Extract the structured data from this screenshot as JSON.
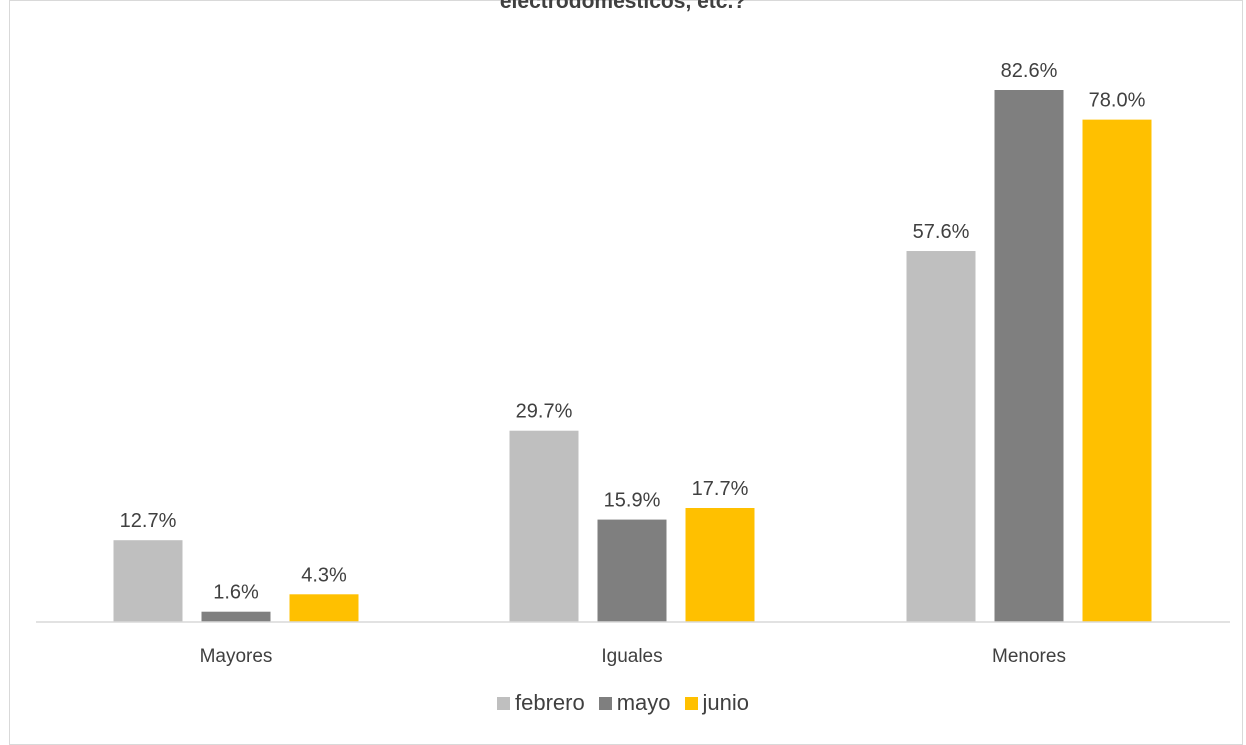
{
  "chart_data": {
    "type": "bar",
    "title": "electrodomésticos, etc.?",
    "categories": [
      "Mayores",
      "Iguales",
      "Menores"
    ],
    "series": [
      {
        "name": "febrero",
        "color": "#bfbfbf",
        "values": [
          12.7,
          29.7,
          57.6
        ],
        "labels": [
          "12.7%",
          "29.7%",
          "57.6%"
        ]
      },
      {
        "name": "mayo",
        "color": "#7f7f7f",
        "values": [
          1.6,
          15.9,
          82.6
        ],
        "labels": [
          "1.6%",
          "15.9%",
          "82.6%"
        ]
      },
      {
        "name": "junio",
        "color": "#ffc000",
        "values": [
          4.3,
          17.7,
          78.0
        ],
        "labels": [
          "4.3%",
          "17.7%",
          "78.0%"
        ]
      }
    ],
    "value_unit": "%",
    "ylim": [
      0,
      90
    ],
    "gridlines": false,
    "legend_position": "bottom"
  }
}
